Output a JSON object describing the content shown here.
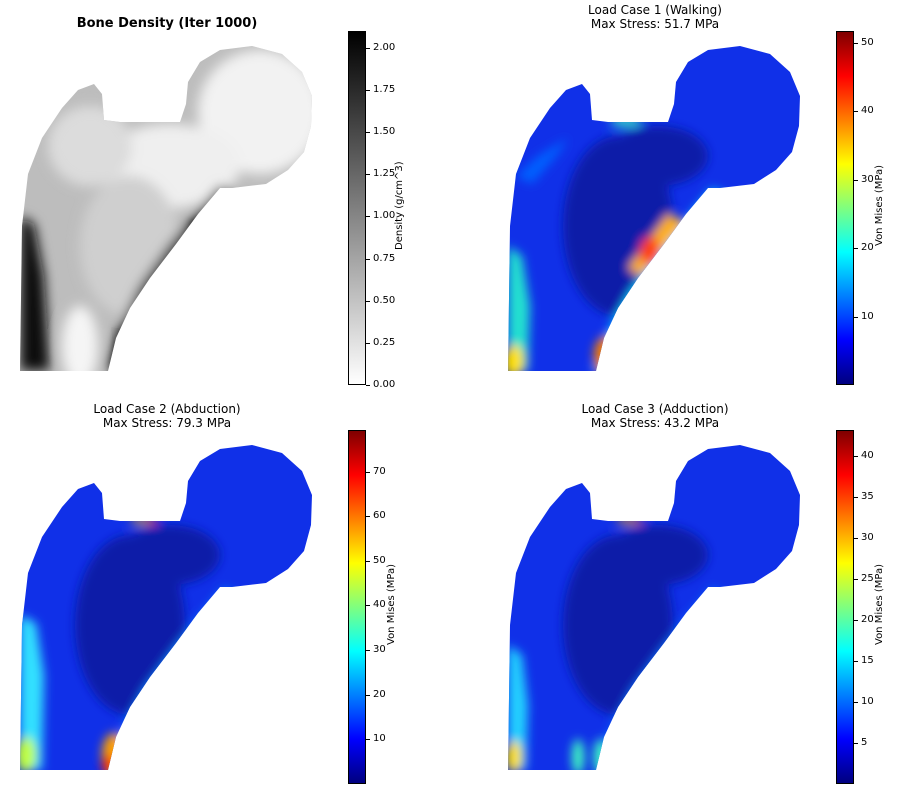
{
  "chart_data": [
    {
      "type": "heatmap",
      "title": "Bone Density (Iter 1000)",
      "subtitle": "",
      "colorbar": {
        "label": "Density (g/cm^3)",
        "range": [
          0.0,
          2.1
        ],
        "ticks": [
          "0.00",
          "0.25",
          "0.50",
          "0.75",
          "1.00",
          "1.25",
          "1.50",
          "1.75",
          "2.00"
        ],
        "colormap": "gray_r"
      },
      "field": "density"
    },
    {
      "type": "heatmap",
      "title": "Load Case 1 (Walking)",
      "subtitle": "Max Stress: 51.7 MPa",
      "colorbar": {
        "label": "Von Mises (MPa)",
        "range": [
          0,
          51.7
        ],
        "ticks": [
          "10",
          "20",
          "30",
          "40",
          "50"
        ],
        "colormap": "jet"
      },
      "field": "stress",
      "max_value": 51.7
    },
    {
      "type": "heatmap",
      "title": "Load Case 2 (Abduction)",
      "subtitle": "Max Stress: 79.3 MPa",
      "colorbar": {
        "label": "Von Mises (MPa)",
        "range": [
          0,
          79.3
        ],
        "ticks": [
          "10",
          "20",
          "30",
          "40",
          "50",
          "60",
          "70"
        ],
        "colormap": "jet"
      },
      "field": "stress",
      "max_value": 79.3
    },
    {
      "type": "heatmap",
      "title": "Load Case 3 (Adduction)",
      "subtitle": "Max Stress: 43.2 MPa",
      "colorbar": {
        "label": "Von Mises (MPa)",
        "range": [
          0,
          43.2
        ],
        "ticks": [
          "5",
          "10",
          "15",
          "20",
          "25",
          "30",
          "35",
          "40"
        ],
        "colormap": "jet"
      },
      "field": "stress",
      "max_value": 43.2
    }
  ],
  "colors": {
    "jet": [
      "#00007f",
      "#0000ff",
      "#007fff",
      "#00ffff",
      "#7fff7f",
      "#ffff00",
      "#ff7f00",
      "#ff0000",
      "#7f0000"
    ],
    "gray_r": [
      "#ffffff",
      "#000000"
    ]
  }
}
